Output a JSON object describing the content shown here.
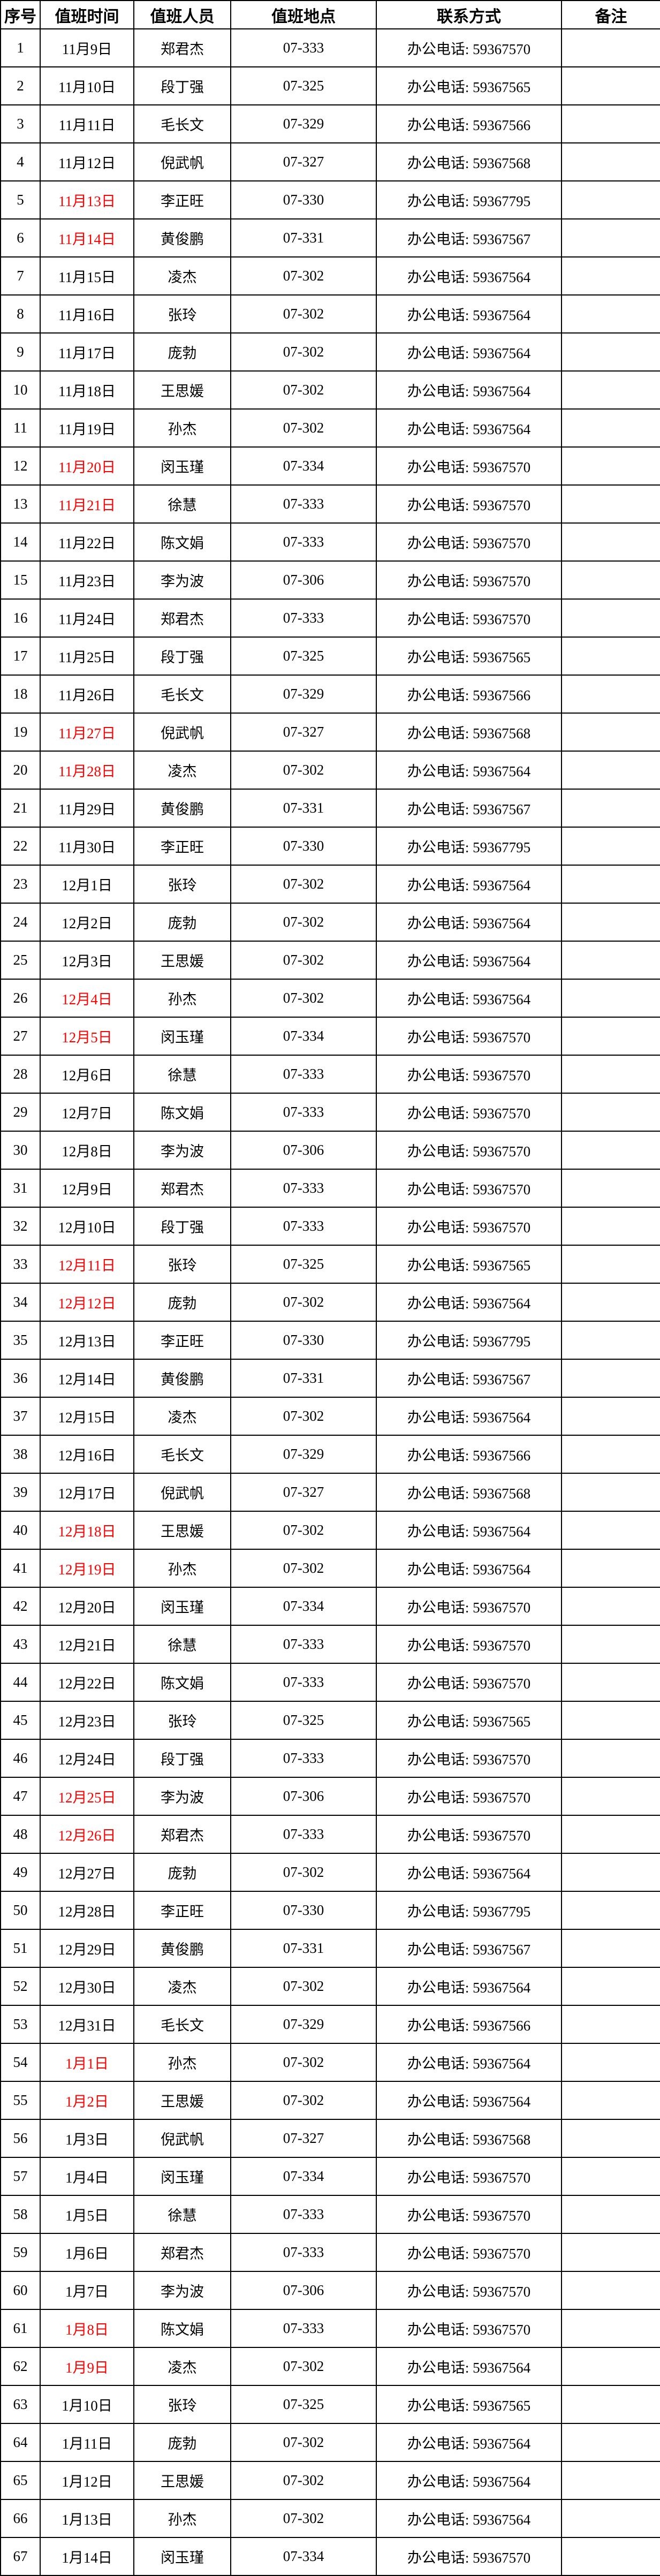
{
  "colors": {
    "date_highlight_red": "#FF0000",
    "grid_line": "#000000",
    "text": "#000000",
    "background": "#FFFFFF"
  },
  "table": {
    "headers": [
      "序号",
      "值班时间",
      "值班人员",
      "值班地点",
      "联系方式",
      "备注"
    ],
    "contact_label": "办公电话: ",
    "rows": [
      {
        "no": "1",
        "date": "11月9日",
        "red": false,
        "name": "郑君杰",
        "room": "07-333",
        "phone": "59367570",
        "note": ""
      },
      {
        "no": "2",
        "date": "11月10日",
        "red": false,
        "name": "段丁强",
        "room": "07-325",
        "phone": "59367565",
        "note": ""
      },
      {
        "no": "3",
        "date": "11月11日",
        "red": false,
        "name": "毛长文",
        "room": "07-329",
        "phone": "59367566",
        "note": ""
      },
      {
        "no": "4",
        "date": "11月12日",
        "red": false,
        "name": "倪武帆",
        "room": "07-327",
        "phone": "59367568",
        "note": ""
      },
      {
        "no": "5",
        "date": "11月13日",
        "red": true,
        "name": "李正旺",
        "room": "07-330",
        "phone": "59367795",
        "note": ""
      },
      {
        "no": "6",
        "date": "11月14日",
        "red": true,
        "name": "黄俊鹏",
        "room": "07-331",
        "phone": "59367567",
        "note": ""
      },
      {
        "no": "7",
        "date": "11月15日",
        "red": false,
        "name": "凌杰",
        "room": "07-302",
        "phone": "59367564",
        "note": ""
      },
      {
        "no": "8",
        "date": "11月16日",
        "red": false,
        "name": "张玲",
        "room": "07-302",
        "phone": "59367564",
        "note": ""
      },
      {
        "no": "9",
        "date": "11月17日",
        "red": false,
        "name": "庞勃",
        "room": "07-302",
        "phone": "59367564",
        "note": ""
      },
      {
        "no": "10",
        "date": "11月18日",
        "red": false,
        "name": "王思媛",
        "room": "07-302",
        "phone": "59367564",
        "note": ""
      },
      {
        "no": "11",
        "date": "11月19日",
        "red": false,
        "name": "孙杰",
        "room": "07-302",
        "phone": "59367564",
        "note": ""
      },
      {
        "no": "12",
        "date": "11月20日",
        "red": true,
        "name": "闵玉瑾",
        "room": "07-334",
        "phone": "59367570",
        "note": ""
      },
      {
        "no": "13",
        "date": "11月21日",
        "red": true,
        "name": "徐慧",
        "room": "07-333",
        "phone": "59367570",
        "note": ""
      },
      {
        "no": "14",
        "date": "11月22日",
        "red": false,
        "name": "陈文娟",
        "room": "07-333",
        "phone": "59367570",
        "note": ""
      },
      {
        "no": "15",
        "date": "11月23日",
        "red": false,
        "name": "李为波",
        "room": "07-306",
        "phone": "59367570",
        "note": ""
      },
      {
        "no": "16",
        "date": "11月24日",
        "red": false,
        "name": "郑君杰",
        "room": "07-333",
        "phone": "59367570",
        "note": ""
      },
      {
        "no": "17",
        "date": "11月25日",
        "red": false,
        "name": "段丁强",
        "room": "07-325",
        "phone": "59367565",
        "note": ""
      },
      {
        "no": "18",
        "date": "11月26日",
        "red": false,
        "name": "毛长文",
        "room": "07-329",
        "phone": "59367566",
        "note": ""
      },
      {
        "no": "19",
        "date": "11月27日",
        "red": true,
        "name": "倪武帆",
        "room": "07-327",
        "phone": "59367568",
        "note": ""
      },
      {
        "no": "20",
        "date": "11月28日",
        "red": true,
        "name": "凌杰",
        "room": "07-302",
        "phone": "59367564",
        "note": ""
      },
      {
        "no": "21",
        "date": "11月29日",
        "red": false,
        "name": "黄俊鹏",
        "room": "07-331",
        "phone": "59367567",
        "note": ""
      },
      {
        "no": "22",
        "date": "11月30日",
        "red": false,
        "name": "李正旺",
        "room": "07-330",
        "phone": "59367795",
        "note": ""
      },
      {
        "no": "23",
        "date": "12月1日",
        "red": false,
        "name": "张玲",
        "room": "07-302",
        "phone": "59367564",
        "note": ""
      },
      {
        "no": "24",
        "date": "12月2日",
        "red": false,
        "name": "庞勃",
        "room": "07-302",
        "phone": "59367564",
        "note": ""
      },
      {
        "no": "25",
        "date": "12月3日",
        "red": false,
        "name": "王思媛",
        "room": "07-302",
        "phone": "59367564",
        "note": ""
      },
      {
        "no": "26",
        "date": "12月4日",
        "red": true,
        "name": "孙杰",
        "room": "07-302",
        "phone": "59367564",
        "note": ""
      },
      {
        "no": "27",
        "date": "12月5日",
        "red": true,
        "name": "闵玉瑾",
        "room": "07-334",
        "phone": "59367570",
        "note": ""
      },
      {
        "no": "28",
        "date": "12月6日",
        "red": false,
        "name": "徐慧",
        "room": "07-333",
        "phone": "59367570",
        "note": ""
      },
      {
        "no": "29",
        "date": "12月7日",
        "red": false,
        "name": "陈文娟",
        "room": "07-333",
        "phone": "59367570",
        "note": ""
      },
      {
        "no": "30",
        "date": "12月8日",
        "red": false,
        "name": "李为波",
        "room": "07-306",
        "phone": "59367570",
        "note": ""
      },
      {
        "no": "31",
        "date": "12月9日",
        "red": false,
        "name": "郑君杰",
        "room": "07-333",
        "phone": "59367570",
        "note": ""
      },
      {
        "no": "32",
        "date": "12月10日",
        "red": false,
        "name": "段丁强",
        "room": "07-333",
        "phone": "59367570",
        "note": ""
      },
      {
        "no": "33",
        "date": "12月11日",
        "red": true,
        "name": "张玲",
        "room": "07-325",
        "phone": "59367565",
        "note": ""
      },
      {
        "no": "34",
        "date": "12月12日",
        "red": true,
        "name": "庞勃",
        "room": "07-302",
        "phone": "59367564",
        "note": ""
      },
      {
        "no": "35",
        "date": "12月13日",
        "red": false,
        "name": "李正旺",
        "room": "07-330",
        "phone": "59367795",
        "note": ""
      },
      {
        "no": "36",
        "date": "12月14日",
        "red": false,
        "name": "黄俊鹏",
        "room": "07-331",
        "phone": "59367567",
        "note": ""
      },
      {
        "no": "37",
        "date": "12月15日",
        "red": false,
        "name": "凌杰",
        "room": "07-302",
        "phone": "59367564",
        "note": ""
      },
      {
        "no": "38",
        "date": "12月16日",
        "red": false,
        "name": "毛长文",
        "room": "07-329",
        "phone": "59367566",
        "note": ""
      },
      {
        "no": "39",
        "date": "12月17日",
        "red": false,
        "name": "倪武帆",
        "room": "07-327",
        "phone": "59367568",
        "note": ""
      },
      {
        "no": "40",
        "date": "12月18日",
        "red": true,
        "name": "王思媛",
        "room": "07-302",
        "phone": "59367564",
        "note": ""
      },
      {
        "no": "41",
        "date": "12月19日",
        "red": true,
        "name": "孙杰",
        "room": "07-302",
        "phone": "59367564",
        "note": ""
      },
      {
        "no": "42",
        "date": "12月20日",
        "red": false,
        "name": "闵玉瑾",
        "room": "07-334",
        "phone": "59367570",
        "note": ""
      },
      {
        "no": "43",
        "date": "12月21日",
        "red": false,
        "name": "徐慧",
        "room": "07-333",
        "phone": "59367570",
        "note": ""
      },
      {
        "no": "44",
        "date": "12月22日",
        "red": false,
        "name": "陈文娟",
        "room": "07-333",
        "phone": "59367570",
        "note": ""
      },
      {
        "no": "45",
        "date": "12月23日",
        "red": false,
        "name": "张玲",
        "room": "07-325",
        "phone": "59367565",
        "note": ""
      },
      {
        "no": "46",
        "date": "12月24日",
        "red": false,
        "name": "段丁强",
        "room": "07-333",
        "phone": "59367570",
        "note": ""
      },
      {
        "no": "47",
        "date": "12月25日",
        "red": true,
        "name": "李为波",
        "room": "07-306",
        "phone": "59367570",
        "note": ""
      },
      {
        "no": "48",
        "date": "12月26日",
        "red": true,
        "name": "郑君杰",
        "room": "07-333",
        "phone": "59367570",
        "note": ""
      },
      {
        "no": "49",
        "date": "12月27日",
        "red": false,
        "name": "庞勃",
        "room": "07-302",
        "phone": "59367564",
        "note": ""
      },
      {
        "no": "50",
        "date": "12月28日",
        "red": false,
        "name": "李正旺",
        "room": "07-330",
        "phone": "59367795",
        "note": ""
      },
      {
        "no": "51",
        "date": "12月29日",
        "red": false,
        "name": "黄俊鹏",
        "room": "07-331",
        "phone": "59367567",
        "note": ""
      },
      {
        "no": "52",
        "date": "12月30日",
        "red": false,
        "name": "凌杰",
        "room": "07-302",
        "phone": "59367564",
        "note": ""
      },
      {
        "no": "53",
        "date": "12月31日",
        "red": false,
        "name": "毛长文",
        "room": "07-329",
        "phone": "59367566",
        "note": ""
      },
      {
        "no": "54",
        "date": "1月1日",
        "red": true,
        "name": "孙杰",
        "room": "07-302",
        "phone": "59367564",
        "note": ""
      },
      {
        "no": "55",
        "date": "1月2日",
        "red": true,
        "name": "王思媛",
        "room": "07-302",
        "phone": "59367564",
        "note": ""
      },
      {
        "no": "56",
        "date": "1月3日",
        "red": false,
        "name": "倪武帆",
        "room": "07-327",
        "phone": "59367568",
        "note": ""
      },
      {
        "no": "57",
        "date": "1月4日",
        "red": false,
        "name": "闵玉瑾",
        "room": "07-334",
        "phone": "59367570",
        "note": ""
      },
      {
        "no": "58",
        "date": "1月5日",
        "red": false,
        "name": "徐慧",
        "room": "07-333",
        "phone": "59367570",
        "note": ""
      },
      {
        "no": "59",
        "date": "1月6日",
        "red": false,
        "name": "郑君杰",
        "room": "07-333",
        "phone": "59367570",
        "note": ""
      },
      {
        "no": "60",
        "date": "1月7日",
        "red": false,
        "name": "李为波",
        "room": "07-306",
        "phone": "59367570",
        "note": ""
      },
      {
        "no": "61",
        "date": "1月8日",
        "red": true,
        "name": "陈文娟",
        "room": "07-333",
        "phone": "59367570",
        "note": ""
      },
      {
        "no": "62",
        "date": "1月9日",
        "red": true,
        "name": "凌杰",
        "room": "07-302",
        "phone": "59367564",
        "note": ""
      },
      {
        "no": "63",
        "date": "1月10日",
        "red": false,
        "name": "张玲",
        "room": "07-325",
        "phone": "59367565",
        "note": ""
      },
      {
        "no": "64",
        "date": "1月11日",
        "red": false,
        "name": "庞勃",
        "room": "07-302",
        "phone": "59367564",
        "note": ""
      },
      {
        "no": "65",
        "date": "1月12日",
        "red": false,
        "name": "王思媛",
        "room": "07-302",
        "phone": "59367564",
        "note": ""
      },
      {
        "no": "66",
        "date": "1月13日",
        "red": false,
        "name": "孙杰",
        "room": "07-302",
        "phone": "59367564",
        "note": ""
      },
      {
        "no": "67",
        "date": "1月14日",
        "red": false,
        "name": "闵玉瑾",
        "room": "07-334",
        "phone": "59367570",
        "note": ""
      }
    ]
  }
}
